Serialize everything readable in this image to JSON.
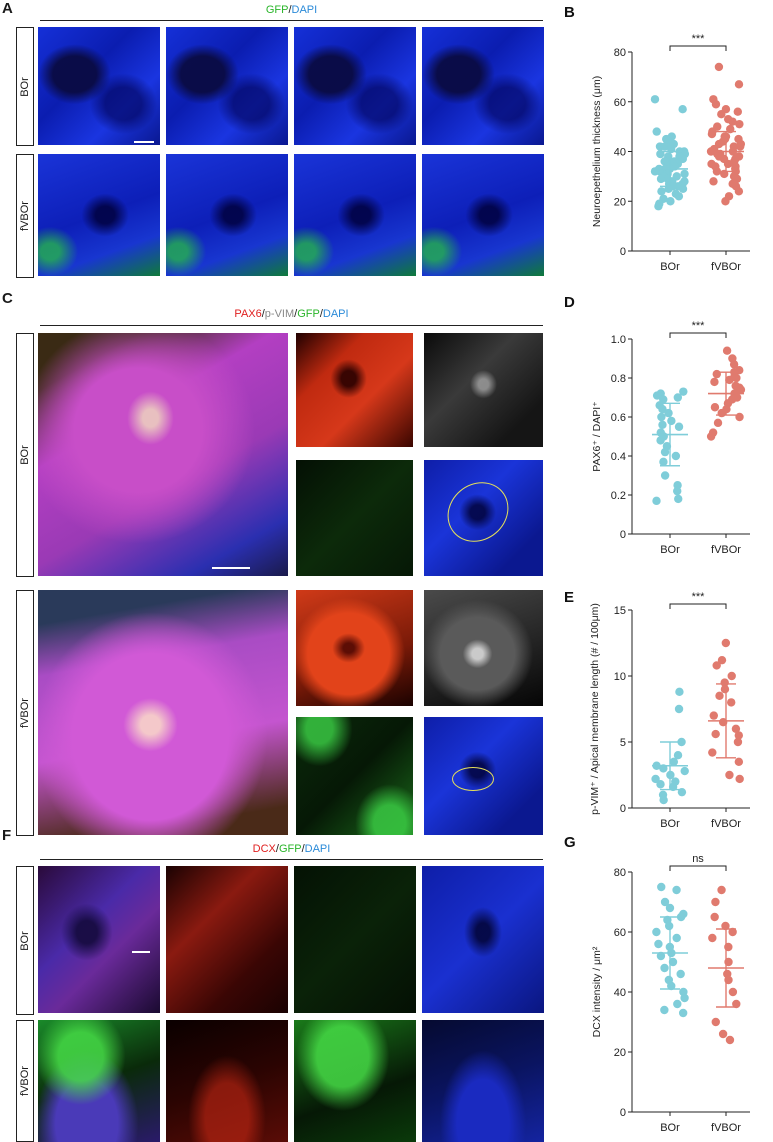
{
  "panels": {
    "A": {
      "letter": "A",
      "header": [
        {
          "text": "GFP",
          "color": "#2ab52a"
        },
        {
          "text": "/",
          "color": "#1a1a1a"
        },
        {
          "text": "DAPI",
          "color": "#2a8ad8"
        }
      ],
      "row_labels": [
        "BOr",
        "fVBOr"
      ]
    },
    "C": {
      "letter": "C",
      "header": [
        {
          "text": "PAX6",
          "color": "#e02020"
        },
        {
          "text": "/",
          "color": "#1a1a1a"
        },
        {
          "text": "p-VIM",
          "color": "#888888"
        },
        {
          "text": "/",
          "color": "#1a1a1a"
        },
        {
          "text": "GFP",
          "color": "#2ab52a"
        },
        {
          "text": "/",
          "color": "#1a1a1a"
        },
        {
          "text": "DAPI",
          "color": "#2a8ad8"
        }
      ],
      "row_labels": [
        "BOr",
        "fVBOr"
      ]
    },
    "F": {
      "letter": "F",
      "header": [
        {
          "text": "DCX",
          "color": "#e02020"
        },
        {
          "text": "/",
          "color": "#1a1a1a"
        },
        {
          "text": "GFP",
          "color": "#2ab52a"
        },
        {
          "text": "/",
          "color": "#1a1a1a"
        },
        {
          "text": "DAPI",
          "color": "#2a8ad8"
        }
      ],
      "row_labels": [
        "BOr",
        "fVBOr"
      ]
    }
  },
  "colors": {
    "BOr": "#7fcdd9",
    "fVBOr": "#e07a6e"
  },
  "chart_data": [
    {
      "id": "B",
      "letter": "B",
      "type": "scatter",
      "ylabel": "Neuroepethelium thickness (μm)",
      "categories": [
        "BOr",
        "fVBOr"
      ],
      "ylim": [
        0,
        80
      ],
      "yticks": [
        0,
        20,
        40,
        60,
        80
      ],
      "significance": "***",
      "series": [
        {
          "name": "BOr",
          "mean": 33,
          "sd": 7,
          "values": [
            61,
            57,
            48,
            46,
            45,
            44,
            43,
            42,
            42,
            41,
            40,
            40,
            39,
            39,
            38,
            38,
            37,
            37,
            36,
            36,
            35,
            35,
            34,
            34,
            33,
            33,
            33,
            32,
            32,
            31,
            31,
            30,
            30,
            29,
            29,
            28,
            28,
            27,
            27,
            26,
            26,
            25,
            25,
            24,
            23,
            22,
            21,
            20,
            19,
            18
          ]
        },
        {
          "name": "fVBOr",
          "mean": 40,
          "sd": 8,
          "values": [
            74,
            67,
            61,
            59,
            57,
            56,
            55,
            53,
            52,
            51,
            50,
            49,
            48,
            47,
            46,
            46,
            45,
            45,
            44,
            43,
            43,
            42,
            42,
            41,
            40,
            40,
            39,
            39,
            38,
            38,
            37,
            37,
            36,
            35,
            35,
            34,
            34,
            33,
            32,
            32,
            31,
            30,
            30,
            29,
            28,
            27,
            26,
            24,
            22,
            20
          ]
        }
      ]
    },
    {
      "id": "D",
      "letter": "D",
      "type": "scatter",
      "ylabel": "PAX6⁺ / DAPI⁺",
      "categories": [
        "BOr",
        "fVBOr"
      ],
      "ylim": [
        0,
        1.0
      ],
      "yticks": [
        0,
        0.2,
        0.4,
        0.6,
        0.8,
        1.0
      ],
      "significance": "***",
      "series": [
        {
          "name": "BOr",
          "mean": 0.51,
          "sd": 0.16,
          "values": [
            0.73,
            0.72,
            0.71,
            0.7,
            0.69,
            0.66,
            0.64,
            0.62,
            0.6,
            0.58,
            0.56,
            0.55,
            0.52,
            0.5,
            0.48,
            0.45,
            0.42,
            0.4,
            0.37,
            0.3,
            0.25,
            0.22,
            0.18,
            0.17
          ]
        },
        {
          "name": "fVBOr",
          "mean": 0.72,
          "sd": 0.11,
          "values": [
            0.94,
            0.9,
            0.87,
            0.84,
            0.83,
            0.82,
            0.81,
            0.8,
            0.79,
            0.78,
            0.76,
            0.75,
            0.74,
            0.72,
            0.7,
            0.69,
            0.67,
            0.65,
            0.64,
            0.62,
            0.6,
            0.57,
            0.52,
            0.5
          ]
        }
      ]
    },
    {
      "id": "E",
      "letter": "E",
      "type": "scatter",
      "ylabel": "p-VIM⁺ / Apical membrane length (# / 100μm)",
      "categories": [
        "BOr",
        "fVBOr"
      ],
      "ylim": [
        0,
        15
      ],
      "yticks": [
        0,
        5,
        10,
        15
      ],
      "significance": "***",
      "series": [
        {
          "name": "BOr",
          "mean": 3.2,
          "sd": 1.8,
          "values": [
            8.8,
            7.5,
            5.0,
            4.0,
            3.5,
            3.2,
            3.0,
            2.8,
            2.5,
            2.2,
            2.0,
            1.8,
            1.6,
            1.2,
            1.0,
            0.6
          ]
        },
        {
          "name": "fVBOr",
          "mean": 6.6,
          "sd": 2.8,
          "values": [
            12.5,
            11.2,
            10.8,
            10.0,
            9.5,
            9.0,
            8.5,
            8.0,
            7.0,
            6.5,
            6.0,
            5.6,
            5.5,
            5.0,
            4.2,
            3.5,
            2.5,
            2.2
          ]
        }
      ]
    },
    {
      "id": "G",
      "letter": "G",
      "type": "scatter",
      "ylabel": "DCX intensity / μm²",
      "categories": [
        "BOr",
        "fVBOr"
      ],
      "ylim": [
        0,
        80
      ],
      "yticks": [
        0,
        20,
        40,
        60,
        80
      ],
      "significance": "ns",
      "series": [
        {
          "name": "BOr",
          "mean": 53,
          "sd": 12,
          "values": [
            75,
            74,
            70,
            68,
            66,
            65,
            64,
            62,
            60,
            58,
            56,
            55,
            53,
            52,
            50,
            48,
            46,
            44,
            42,
            40,
            38,
            36,
            34,
            33
          ]
        },
        {
          "name": "fVBOr",
          "mean": 48,
          "sd": 13,
          "values": [
            74,
            70,
            65,
            62,
            60,
            58,
            55,
            50,
            46,
            44,
            40,
            36,
            30,
            26,
            24
          ]
        }
      ]
    }
  ]
}
